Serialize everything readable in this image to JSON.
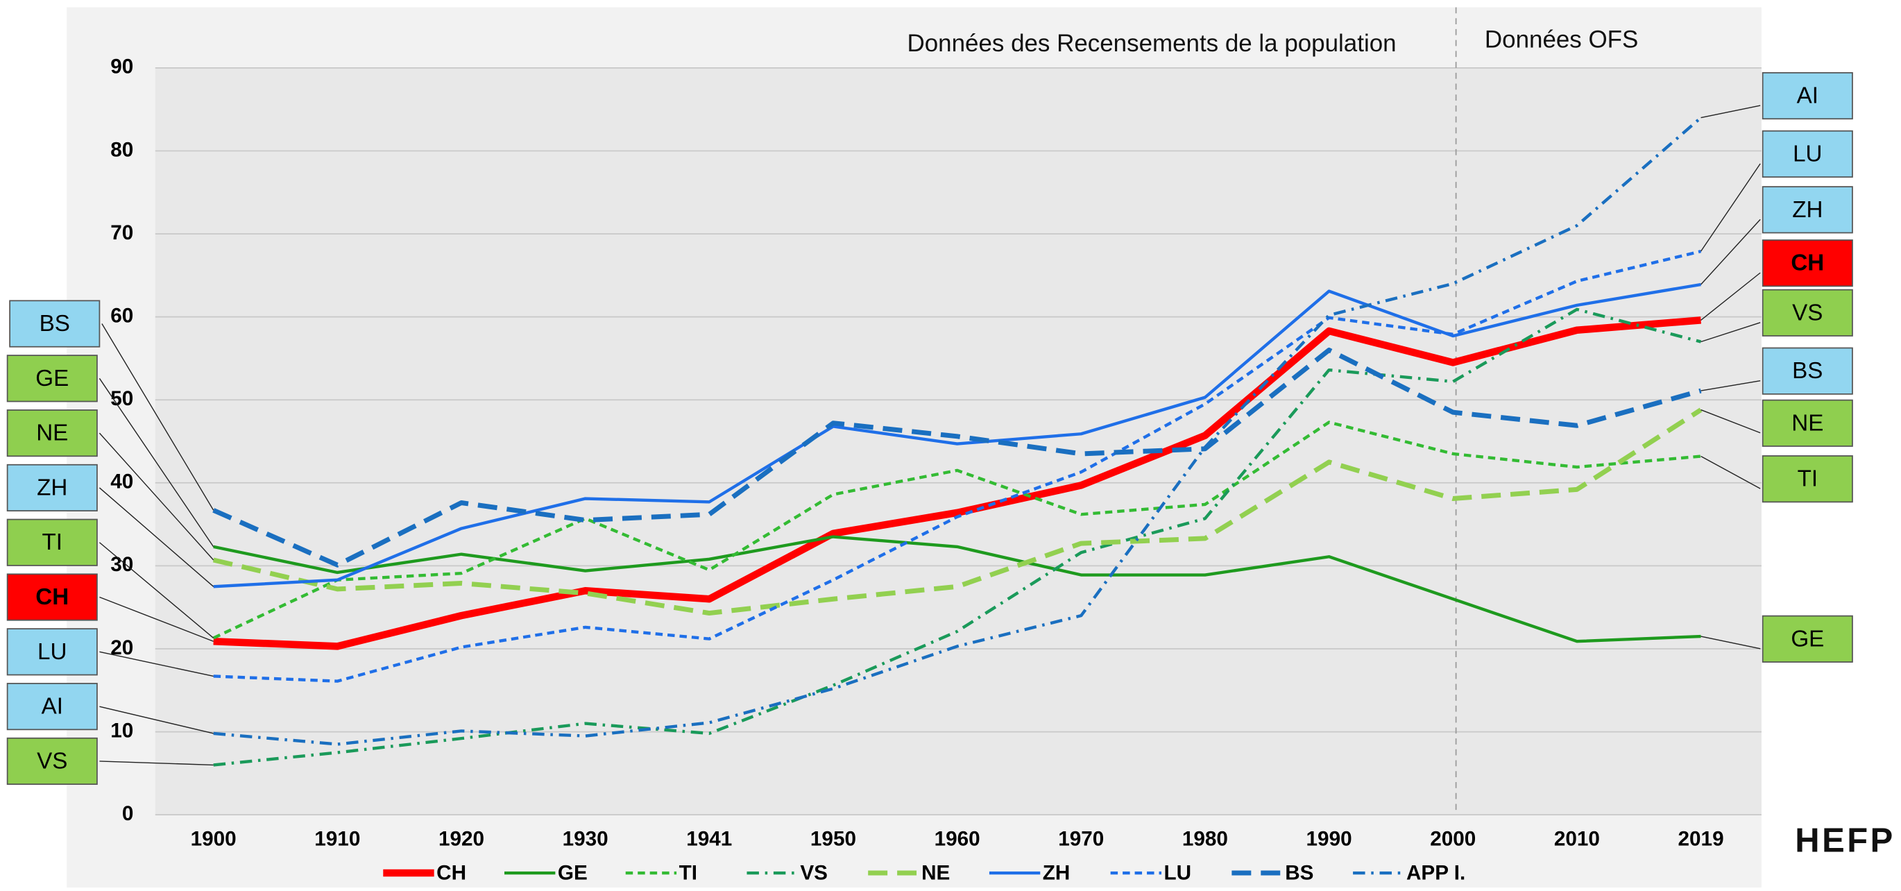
{
  "chart_data": {
    "type": "line",
    "annotations": [
      {
        "text": "Données des Recensements de la population"
      },
      {
        "text": "Données OFS"
      }
    ],
    "brand": "HEFP",
    "categories": [
      "1900",
      "1910",
      "1920",
      "1930",
      "1941",
      "1950",
      "1960",
      "1970",
      "1980",
      "1990",
      "2000",
      "2010",
      "2019"
    ],
    "ylim": [
      0,
      90
    ],
    "yticks": [
      0,
      10,
      20,
      30,
      40,
      50,
      60,
      70,
      80,
      90
    ],
    "grid": true,
    "legend": "bottom",
    "series": [
      {
        "name": "CH",
        "color": "#ff0000",
        "style": "bold",
        "values": [
          20.9,
          20.3,
          24.0,
          27.0,
          26.0,
          33.9,
          36.4,
          39.7,
          45.7,
          58.3,
          54.5,
          58.4,
          59.6
        ]
      },
      {
        "name": "GE",
        "color": "#1e9a1e",
        "style": "solid",
        "values": [
          32.3,
          29.2,
          31.4,
          29.4,
          30.8,
          33.5,
          32.3,
          28.9,
          28.9,
          31.1,
          26.0,
          20.9,
          21.5
        ]
      },
      {
        "name": "TI",
        "color": "#33bb33",
        "style": "dashed",
        "values": [
          21.3,
          28.3,
          29.1,
          35.7,
          29.5,
          38.6,
          41.5,
          36.2,
          37.4,
          47.3,
          43.5,
          41.9,
          43.2
        ]
      },
      {
        "name": "VS",
        "color": "#1a9a5a",
        "style": "dashdot",
        "values": [
          6.0,
          7.5,
          9.2,
          11.0,
          9.8,
          15.6,
          22.1,
          31.6,
          35.7,
          53.6,
          52.2,
          60.9,
          57.0
        ]
      },
      {
        "name": "NE",
        "color": "#92d050",
        "style": "longdash",
        "values": [
          30.7,
          27.2,
          27.9,
          26.7,
          24.3,
          26.0,
          27.5,
          32.7,
          33.3,
          42.5,
          38.1,
          39.2,
          48.8
        ]
      },
      {
        "name": "ZH",
        "color": "#1f6fe8",
        "style": "solid",
        "values": [
          27.5,
          28.3,
          34.5,
          38.1,
          37.7,
          46.8,
          44.7,
          45.9,
          50.3,
          63.1,
          57.7,
          61.4,
          63.9
        ]
      },
      {
        "name": "LU",
        "color": "#1f6fe8",
        "style": "dashed",
        "values": [
          16.7,
          16.1,
          20.2,
          22.6,
          21.2,
          28.3,
          35.9,
          41.3,
          49.5,
          59.9,
          57.9,
          64.3,
          67.9
        ]
      },
      {
        "name": "BS",
        "color": "#1a6fc0",
        "style": "longdash",
        "values": [
          36.7,
          30.1,
          37.6,
          35.5,
          36.2,
          47.2,
          45.6,
          43.5,
          44.1,
          56.0,
          48.5,
          46.9,
          51.1
        ]
      },
      {
        "name": "APP I.",
        "color": "#1a6fc0",
        "style": "dashdot",
        "values": [
          9.8,
          8.5,
          10.1,
          9.5,
          11.1,
          15.2,
          20.3,
          24.0,
          44.3,
          60.2,
          64.0,
          71.0,
          84.0
        ]
      }
    ],
    "left_labels": [
      {
        "text": "BS",
        "color": "#92d6f0"
      },
      {
        "text": "GE",
        "color": "#8fcf4f"
      },
      {
        "text": "NE",
        "color": "#8fcf4f"
      },
      {
        "text": "ZH",
        "color": "#92d6f0"
      },
      {
        "text": "TI",
        "color": "#8fcf4f"
      },
      {
        "text": "CH",
        "color": "#ff0000"
      },
      {
        "text": "LU",
        "color": "#92d6f0"
      },
      {
        "text": "AI",
        "color": "#92d6f0"
      },
      {
        "text": "VS",
        "color": "#8fcf4f"
      }
    ],
    "right_labels": [
      {
        "text": "AI",
        "color": "#92d6f0"
      },
      {
        "text": "LU",
        "color": "#92d6f0"
      },
      {
        "text": "ZH",
        "color": "#92d6f0"
      },
      {
        "text": "CH",
        "color": "#ff0000"
      },
      {
        "text": "VS",
        "color": "#8fcf4f"
      },
      {
        "text": "BS",
        "color": "#92d6f0"
      },
      {
        "text": "NE",
        "color": "#8fcf4f"
      },
      {
        "text": "TI",
        "color": "#8fcf4f"
      },
      {
        "text": "GE",
        "color": "#8fcf4f"
      }
    ]
  }
}
